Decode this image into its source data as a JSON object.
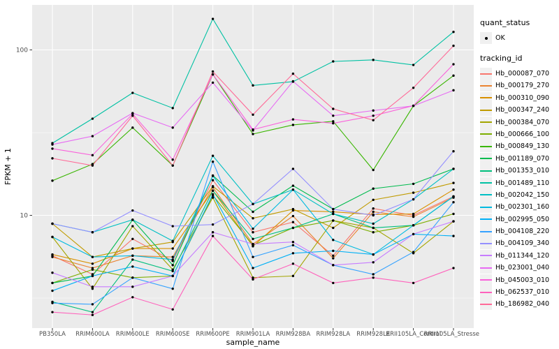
{
  "axes": {
    "x_title": "sample_name",
    "y_title": "FPKM + 1",
    "y_tick_labels": [
      "100",
      "10"
    ]
  },
  "legend": {
    "quant_status_title": "quant_status",
    "quant_status_items": [
      "OK"
    ],
    "tracking_title": "tracking_id"
  },
  "colors": {
    "panel_background": "#EBEBEB",
    "gridline": "#FFFFFF",
    "axis_text": "#4D4D4D",
    "tick_mark": "#333333",
    "point": "#000000",
    "legend_key_background": "#F0F0F0"
  },
  "chart_data": {
    "type": "line",
    "title": "",
    "xlabel": "sample_name",
    "ylabel": "FPKM + 1",
    "y_scale": "log10",
    "ylim": [
      2,
      170
    ],
    "y_major_breaks": [
      10,
      100
    ],
    "y_minor_breaks": [
      3.162,
      31.62
    ],
    "grid": true,
    "legend_position": "right",
    "point_marker": "black dot (quant_status OK)",
    "categories": [
      "PB350LA",
      "RRIM600LA",
      "RRIM600LE",
      "RRIM600SE",
      "RRIM600PE",
      "RRIM901LA",
      "RRIM928BA",
      "RRIM928LA",
      "RRIM928LE",
      "RRII105LA_Control",
      "RRII105LA_Stressed"
    ],
    "series": [
      {
        "name": "Hb_000087_070",
        "color": "#F8766D",
        "values": [
          5.7,
          4.4,
          7.2,
          5.3,
          16.3,
          7.9,
          9.1,
          5.7,
          11.0,
          10.0,
          13.0
        ]
      },
      {
        "name": "Hb_000179_270",
        "color": "#EA8331",
        "values": [
          5.6,
          4.8,
          5.7,
          5.6,
          14.8,
          6.7,
          9.9,
          5.5,
          10.5,
          9.8,
          12.8
        ]
      },
      {
        "name": "Hb_000310_090",
        "color": "#D89000",
        "values": [
          5.8,
          5.1,
          6.3,
          6.3,
          14.1,
          6.5,
          10.7,
          10.5,
          10.1,
          10.2,
          14.3
        ]
      },
      {
        "name": "Hb_000347_240",
        "color": "#C09B00",
        "values": [
          8.9,
          5.6,
          6.3,
          6.9,
          15.0,
          9.6,
          10.9,
          8.4,
          12.4,
          13.7,
          15.7
        ]
      },
      {
        "name": "Hb_000384_070",
        "color": "#A3A500",
        "values": [
          7.4,
          3.6,
          8.6,
          4.7,
          12.8,
          4.2,
          4.3,
          9.3,
          8.4,
          5.9,
          9.2
        ]
      },
      {
        "name": "Hb_000666_100",
        "color": "#7CAE00",
        "values": [
          3.9,
          4.7,
          4.2,
          4.3,
          13.2,
          6.6,
          8.4,
          9.3,
          7.9,
          8.7,
          10.2
        ]
      },
      {
        "name": "Hb_000849_130",
        "color": "#39B600",
        "values": [
          16.2,
          20.4,
          33.9,
          20.0,
          71.1,
          31.0,
          35.2,
          37.0,
          18.8,
          45.9,
          69.9
        ]
      },
      {
        "name": "Hb_001189_070",
        "color": "#00BB4E",
        "values": [
          3.9,
          4.3,
          9.4,
          5.0,
          17.4,
          10.5,
          15.1,
          10.9,
          14.5,
          15.5,
          19.1
        ]
      },
      {
        "name": "Hb_001353_010",
        "color": "#00BF7D",
        "values": [
          3.0,
          2.6,
          5.4,
          4.6,
          14.1,
          7.2,
          8.4,
          10.2,
          8.4,
          8.7,
          13.0
        ]
      },
      {
        "name": "Hb_001489_110",
        "color": "#00C1A3",
        "values": [
          27.3,
          38.4,
          55.0,
          44.5,
          154.0,
          61.0,
          64.3,
          85.2,
          87.0,
          81.1,
          128.5
        ]
      },
      {
        "name": "Hb_002042_150",
        "color": "#00BFC4",
        "values": [
          8.9,
          7.9,
          9.4,
          7.0,
          22.9,
          11.7,
          14.3,
          10.2,
          8.9,
          12.5,
          19.1
        ]
      },
      {
        "name": "Hb_002301_160",
        "color": "#00BAE0",
        "values": [
          7.4,
          5.6,
          5.7,
          5.4,
          17.3,
          8.3,
          14.3,
          7.1,
          5.8,
          8.7,
          13.0
        ]
      },
      {
        "name": "Hb_002995_050",
        "color": "#00B0F6",
        "values": [
          3.5,
          4.3,
          4.9,
          4.3,
          13.4,
          4.8,
          5.9,
          6.1,
          5.8,
          7.7,
          7.5
        ]
      },
      {
        "name": "Hb_004108_220",
        "color": "#35A2FF",
        "values": [
          2.95,
          2.9,
          4.2,
          3.6,
          21.1,
          5.6,
          6.6,
          5.0,
          4.4,
          6.0,
          12.0
        ]
      },
      {
        "name": "Hb_004109_340",
        "color": "#9590FF",
        "values": [
          8.9,
          7.9,
          10.7,
          8.6,
          8.8,
          11.7,
          19.1,
          10.9,
          10.0,
          12.5,
          24.4
        ]
      },
      {
        "name": "Hb_011344_120",
        "color": "#C77CFF",
        "values": [
          4.5,
          3.7,
          3.7,
          4.3,
          7.9,
          6.7,
          6.9,
          5.0,
          5.2,
          7.7,
          9.2
        ]
      },
      {
        "name": "Hb_023001_040",
        "color": "#E76BF3",
        "values": [
          26.8,
          30.1,
          41.5,
          33.9,
          63.4,
          32.6,
          64.6,
          40.0,
          43.0,
          45.9,
          57.0
        ]
      },
      {
        "name": "Hb_045003_010",
        "color": "#FA62DB",
        "values": [
          25.3,
          23.1,
          41.0,
          21.7,
          71.1,
          33.0,
          38.0,
          36.0,
          40.0,
          46.0,
          81.9
        ]
      },
      {
        "name": "Hb_062537_010",
        "color": "#FF62BC",
        "values": [
          2.6,
          2.5,
          3.2,
          2.7,
          7.5,
          4.1,
          5.1,
          3.9,
          4.2,
          3.9,
          4.8
        ]
      },
      {
        "name": "Hb_186982_040",
        "color": "#FF6A98",
        "values": [
          22.1,
          20.0,
          40.0,
          20.0,
          74.0,
          40.6,
          71.8,
          44.0,
          37.6,
          59.0,
          105.9
        ]
      }
    ]
  }
}
